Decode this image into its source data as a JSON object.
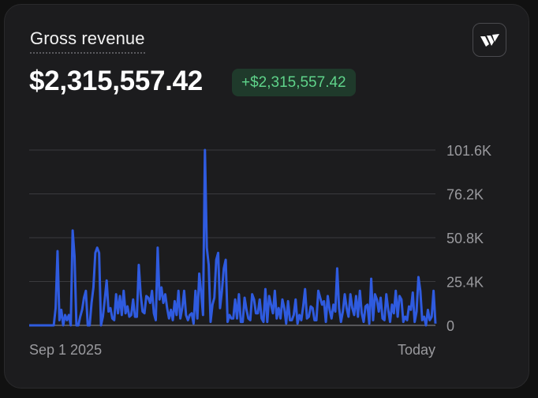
{
  "card": {
    "title": "Gross revenue",
    "amount": "$2,315,557.42",
    "delta": "+$2,315,557.42",
    "logo_icon": "wallet-brand-icon"
  },
  "colors": {
    "line": "#2f5bdf",
    "grid": "#3a3a3e",
    "baseline": "#6a6a6e",
    "delta_text": "#5fd38a",
    "delta_bg": "#1f3a2b"
  },
  "chart_data": {
    "type": "line",
    "ylim": [
      0,
      101600
    ],
    "y_ticks": [
      "0",
      "25.4K",
      "50.8K",
      "76.2K",
      "101.6K"
    ],
    "x_labels": [
      "Sep 1 2025",
      "Today"
    ],
    "grid": true,
    "series": [
      {
        "values": [
          0,
          0,
          0,
          0,
          0,
          0,
          0,
          0,
          0,
          0,
          0,
          0,
          0,
          0,
          10000,
          43000,
          3000,
          9000,
          0,
          6000,
          3000,
          6000,
          0,
          55000,
          40000,
          0,
          0,
          5000,
          9000,
          16000,
          20000,
          0,
          0,
          13000,
          22000,
          42000,
          45000,
          42000,
          0,
          5000,
          15000,
          26000,
          8000,
          10000,
          4000,
          3000,
          18000,
          7000,
          17000,
          6000,
          20000,
          7000,
          11000,
          5000,
          6000,
          15000,
          5000,
          5000,
          35000,
          18000,
          8000,
          7000,
          17000,
          16000,
          13000,
          20000,
          7000,
          3000,
          45000,
          15000,
          22000,
          13000,
          18000,
          10000,
          4000,
          9000,
          3000,
          14000,
          6000,
          20000,
          4000,
          10000,
          20000,
          6000,
          3000,
          6000,
          7000,
          1000,
          20000,
          4000,
          30000,
          19000,
          6000,
          101600,
          45000,
          35000,
          2000,
          12000,
          16000,
          38000,
          42000,
          10000,
          20000,
          33000,
          38000,
          2000,
          6000,
          4000,
          4000,
          15000,
          4000,
          18000,
          2000,
          2000,
          16000,
          9000,
          4000,
          3000,
          18000,
          15000,
          7000,
          7000,
          15000,
          4000,
          2000,
          21000,
          2000,
          17000,
          12000,
          7000,
          20000,
          4000,
          10000,
          4000,
          15000,
          10000,
          1000,
          14000,
          3000,
          3000,
          6000,
          15000,
          1000,
          6000,
          3000,
          11000,
          21000,
          4000,
          5000,
          11000,
          10000,
          3000,
          3000,
          20000,
          16000,
          12000,
          14000,
          2000,
          17000,
          9000,
          4000,
          12000,
          8000,
          33000,
          10000,
          2000,
          8000,
          18000,
          10000,
          5000,
          18000,
          10000,
          6000,
          17000,
          5000,
          20000,
          7000,
          2000,
          11000,
          12000,
          1000,
          27000,
          3000,
          18000,
          15000,
          8000,
          16000,
          4000,
          3000,
          18000,
          9000,
          2000,
          12000,
          7000,
          20000,
          5000,
          17000,
          15000,
          2000,
          5000,
          3000,
          11000,
          9000,
          19000,
          2000,
          8000,
          28000,
          20000,
          3000,
          5000,
          0,
          9000,
          3000,
          5000,
          20000,
          1000
        ]
      }
    ]
  }
}
